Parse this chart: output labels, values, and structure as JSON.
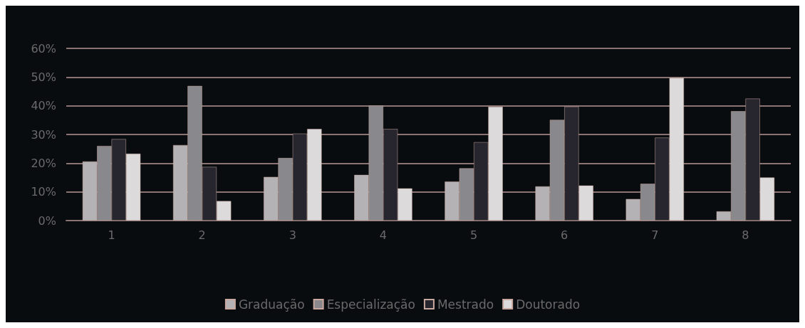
{
  "chart_data": {
    "type": "bar",
    "categories": [
      "1",
      "2",
      "3",
      "4",
      "5",
      "6",
      "7",
      "8"
    ],
    "series": [
      {
        "name": "Graduação",
        "color": "#b4b2b5",
        "values": [
          20.6,
          26.3,
          15.2,
          15.9,
          13.6,
          11.9,
          7.5,
          3.2
        ]
      },
      {
        "name": "Especialização",
        "color": "#89888c",
        "values": [
          26.0,
          46.9,
          21.8,
          40.1,
          18.2,
          35.1,
          12.8,
          38.1
        ]
      },
      {
        "name": "Mestrado",
        "color": "#27262e",
        "values": [
          28.4,
          18.7,
          30.3,
          31.9,
          27.3,
          39.7,
          28.9,
          42.5
        ]
      },
      {
        "name": "Doutorado",
        "color": "#dcdadb",
        "values": [
          23.3,
          6.8,
          31.9,
          11.2,
          39.7,
          12.2,
          49.7,
          15.0
        ]
      }
    ],
    "ylim": [
      0,
      60
    ],
    "yticks": [
      {
        "value": 0,
        "label": "0%"
      },
      {
        "value": 10,
        "label": "10%"
      },
      {
        "value": 20,
        "label": "20%"
      },
      {
        "value": 30,
        "label": "30%"
      },
      {
        "value": 40,
        "label": "40%"
      },
      {
        "value": 50,
        "label": "50%"
      },
      {
        "value": 60,
        "label": "60%"
      }
    ],
    "grid": "y",
    "legend": "bottom"
  }
}
